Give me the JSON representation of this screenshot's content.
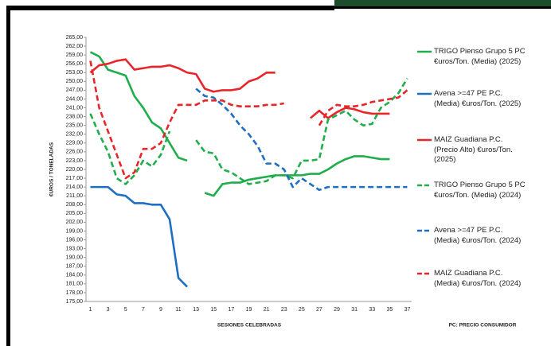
{
  "chart_data": {
    "type": "line",
    "y_label": "€UROS / TONELADAS",
    "x_label": "SESIONES CELEBRADAS",
    "annotation": "PC: PRECIO CONSUMIDOR",
    "categories": [
      "1",
      null,
      "3",
      null,
      "5",
      null,
      "7",
      null,
      "9",
      null,
      "11",
      null,
      "13",
      null,
      "15",
      null,
      "17",
      null,
      "19",
      null,
      "21",
      null,
      "23",
      null,
      "25",
      null,
      "27",
      null,
      "29",
      null,
      "31",
      null,
      "33",
      null,
      "35",
      null,
      "37"
    ],
    "ylim": [
      175,
      265
    ],
    "yticks": [
      {
        "value": 175,
        "label": "175,00"
      },
      {
        "value": 178,
        "label": "178,00"
      },
      {
        "value": 181,
        "label": "181,00"
      },
      {
        "value": 184,
        "label": "184,00"
      },
      {
        "value": 187,
        "label": "187,00"
      },
      {
        "value": 190,
        "label": "190,00"
      },
      {
        "value": 193,
        "label": "193,00"
      },
      {
        "value": 196,
        "label": "196,00"
      },
      {
        "value": 199,
        "label": "199,00"
      },
      {
        "value": 202,
        "label": "202,00"
      },
      {
        "value": 205,
        "label": "205,00"
      },
      {
        "value": 208,
        "label": "208,00"
      },
      {
        "value": 211,
        "label": "211,00"
      },
      {
        "value": 214,
        "label": "214,00"
      },
      {
        "value": 217,
        "label": "217,00"
      },
      {
        "value": 220,
        "label": "220,00"
      },
      {
        "value": 223,
        "label": "223,00"
      },
      {
        "value": 226,
        "label": "226,00"
      },
      {
        "value": 229,
        "label": "229,00"
      },
      {
        "value": 232,
        "label": "232,00"
      },
      {
        "value": 235,
        "label": "235,00"
      },
      {
        "value": 238,
        "label": "238,00"
      },
      {
        "value": 241,
        "label": "241,00"
      },
      {
        "value": 244,
        "label": "244,00"
      },
      {
        "value": 247,
        "label": "247,00"
      },
      {
        "value": 250,
        "label": "250,00"
      },
      {
        "value": 253,
        "label": "253,00"
      },
      {
        "value": 256,
        "label": "256,00"
      },
      {
        "value": 259,
        "label": "259,00"
      },
      {
        "value": 262,
        "label": "262,00"
      },
      {
        "value": 265,
        "label": "265,00"
      }
    ],
    "grid": false,
    "legend": "right",
    "series": [
      {
        "name": "TRIGO Pienso Grupo 5 PC €uros/Ton. (Media) (2025)",
        "color": "#1fae4b",
        "dashed": false,
        "values": [
          260,
          258.5,
          254,
          253,
          252,
          245,
          241,
          236,
          234,
          229,
          224,
          223,
          null,
          212,
          211,
          215,
          215.5,
          215.5,
          216.5,
          217,
          217.5,
          218,
          218,
          218,
          218,
          218.5,
          218.5,
          220,
          222,
          223.5,
          224.5,
          224.5,
          224,
          223.5,
          223.5,
          null,
          null
        ]
      },
      {
        "name": "Avena >=47 PE P.C. (Media) €uros/Ton. (2025)",
        "color": "#1f6fc1",
        "dashed": false,
        "values": [
          214,
          214,
          214,
          211.5,
          211,
          208.5,
          208.5,
          208,
          208,
          203,
          183,
          180,
          null,
          null,
          null,
          null,
          null,
          null,
          null,
          null,
          null,
          null,
          null,
          null,
          null,
          null,
          null,
          null,
          null,
          null,
          null,
          null,
          null,
          null,
          null,
          null,
          null
        ]
      },
      {
        "name": "MAIZ Guadiana P.C. (Precio Alto) €uros/Ton. (2025)",
        "color": "#e8262a",
        "dashed": false,
        "values": [
          253,
          255.5,
          256,
          257,
          257.5,
          254,
          254.5,
          255,
          255,
          255.5,
          254.5,
          253,
          252.5,
          247.5,
          246.5,
          247,
          247,
          247.5,
          250,
          251,
          253,
          253,
          null,
          null,
          null,
          237.5,
          240,
          237.5,
          239.5,
          241,
          240.5,
          239.5,
          239,
          239,
          239,
          null,
          null
        ]
      },
      {
        "name": "TRIGO Pienso Grupo 5 PC €uros/Ton. (Media) (2024)",
        "color": "#1fae4b",
        "dashed": true,
        "values": [
          239,
          232,
          226,
          217,
          215,
          218,
          223,
          221,
          225,
          233,
          null,
          null,
          230,
          226,
          225.5,
          220,
          219,
          217,
          215,
          215.5,
          216,
          218,
          218,
          217,
          223,
          223,
          223.5,
          237,
          238.5,
          240,
          237,
          235,
          235.5,
          241,
          243,
          246,
          251
        ]
      },
      {
        "name": "Avena >=47 PE P.C. (Media) €uros/Ton. (2024)",
        "color": "#1f6fc1",
        "dashed": true,
        "values": [
          null,
          null,
          null,
          null,
          null,
          null,
          null,
          null,
          null,
          null,
          null,
          null,
          247.5,
          245,
          244.5,
          242,
          239,
          235,
          232,
          228,
          222,
          222,
          220,
          214,
          217,
          215,
          213,
          214,
          214,
          214,
          214,
          214,
          214,
          214,
          214,
          214,
          214
        ]
      },
      {
        "name": "MAIZ Guadiana P.C.(Media) €uros/Ton. (2024)",
        "color": "#e8262a",
        "dashed": true,
        "values": [
          257,
          241,
          233,
          225,
          217,
          219,
          227,
          227,
          229,
          236,
          242,
          242,
          242,
          243.5,
          243.5,
          243.5,
          242,
          241.5,
          241.5,
          241.5,
          242,
          242,
          242.5,
          null,
          null,
          null,
          235,
          240,
          242,
          241.5,
          241.5,
          242,
          243,
          243.5,
          244,
          244.5,
          247
        ]
      }
    ]
  }
}
